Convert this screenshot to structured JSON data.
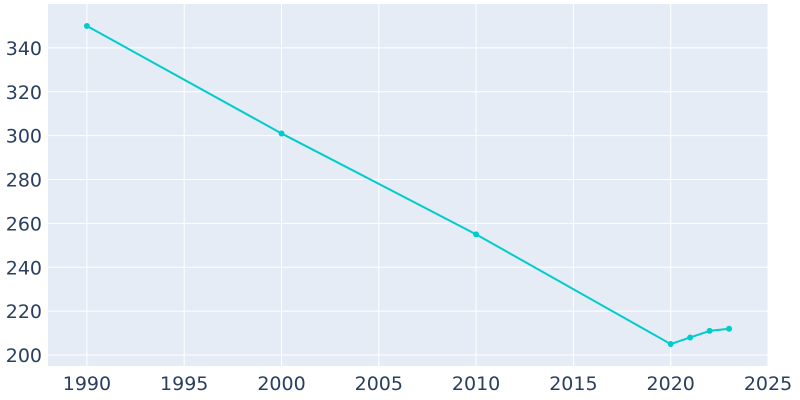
{
  "chart_data": {
    "type": "line",
    "title": "",
    "xlabel": "",
    "ylabel": "",
    "x": [
      1990,
      2000,
      2010,
      2020,
      2021,
      2022,
      2023
    ],
    "series": [
      {
        "values": [
          350,
          301,
          255,
          205,
          208,
          211,
          212
        ]
      }
    ],
    "xlim": [
      1988,
      2025
    ],
    "ylim": [
      195,
      360
    ],
    "x_ticks": [
      1990,
      1995,
      2000,
      2005,
      2010,
      2015,
      2020,
      2025
    ],
    "y_ticks": [
      200,
      220,
      240,
      260,
      280,
      300,
      320,
      340
    ],
    "grid": true,
    "legend": "none"
  },
  "colors": {
    "plot_background": "#e5ecf6",
    "gridline": "#ffffff",
    "line": "#00cccc",
    "tick_text": "#2a3f5f"
  }
}
